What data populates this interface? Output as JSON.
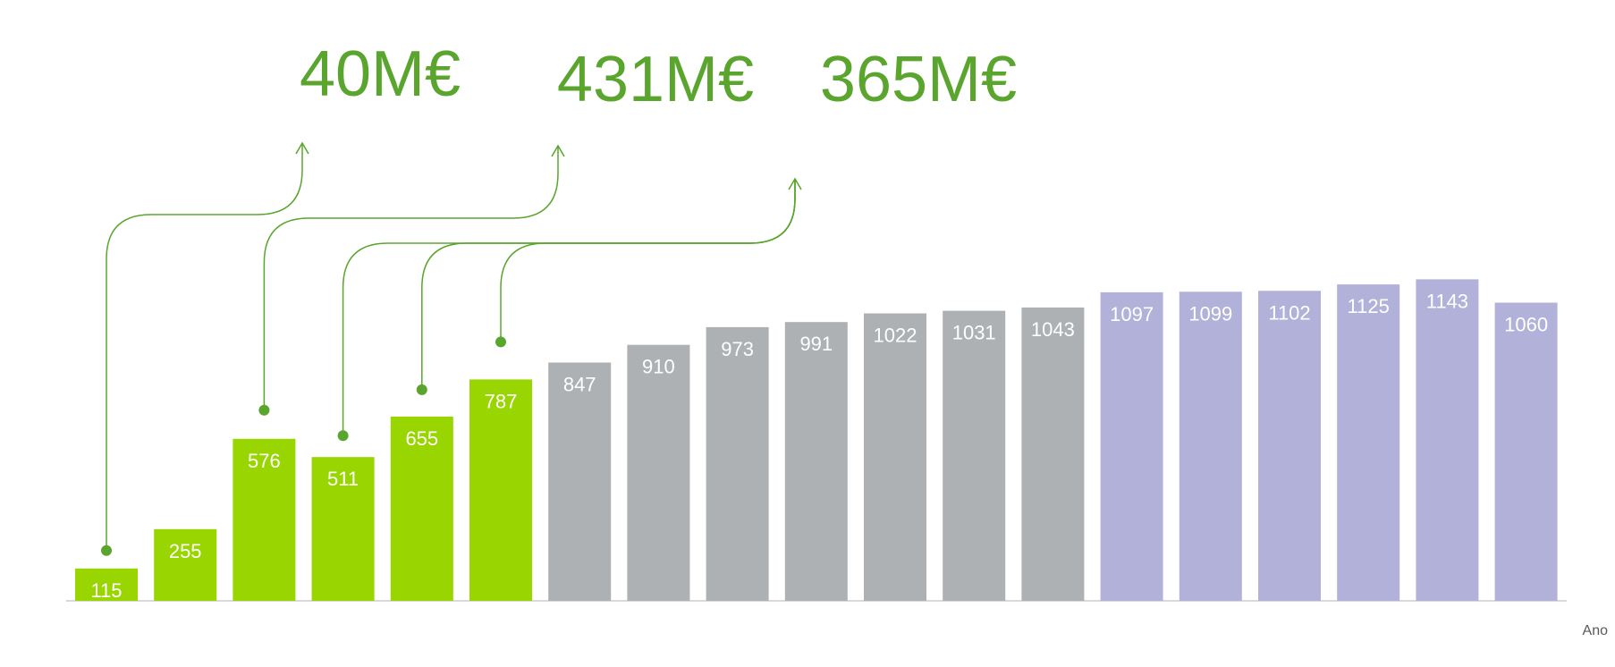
{
  "chart_data": {
    "type": "bar",
    "xlabel": "Ano",
    "categories": [
      "",
      "",
      "",
      "",
      "",
      "",
      "",
      "",
      "",
      "",
      "",
      "",
      "",
      "",
      "",
      "",
      "",
      "",
      ""
    ],
    "values": [
      115,
      255,
      576,
      511,
      655,
      787,
      847,
      910,
      973,
      991,
      1022,
      1031,
      1043,
      1097,
      1099,
      1102,
      1125,
      1143,
      1060
    ],
    "bar_colors": [
      "#99d500",
      "#99d500",
      "#99d500",
      "#99d500",
      "#99d500",
      "#99d500",
      "#adb1b4",
      "#adb1b4",
      "#adb1b4",
      "#adb1b4",
      "#adb1b4",
      "#adb1b4",
      "#adb1b4",
      "#b1b1da",
      "#b1b1da",
      "#b1b1da",
      "#b1b1da",
      "#b1b1da",
      "#b1b1da"
    ],
    "ylim": [
      0,
      1150
    ],
    "grid": false,
    "annotations": [
      {
        "text": "40M€",
        "from_bars": [
          0
        ]
      },
      {
        "text": "431M€",
        "from_bars": [
          2
        ]
      },
      {
        "text": "365M€",
        "from_bars": [
          3,
          4,
          5
        ]
      }
    ],
    "colors": {
      "annotation": "#5aa52d",
      "axis": "#d9d9d9",
      "bar_label": "#ffffff"
    }
  }
}
